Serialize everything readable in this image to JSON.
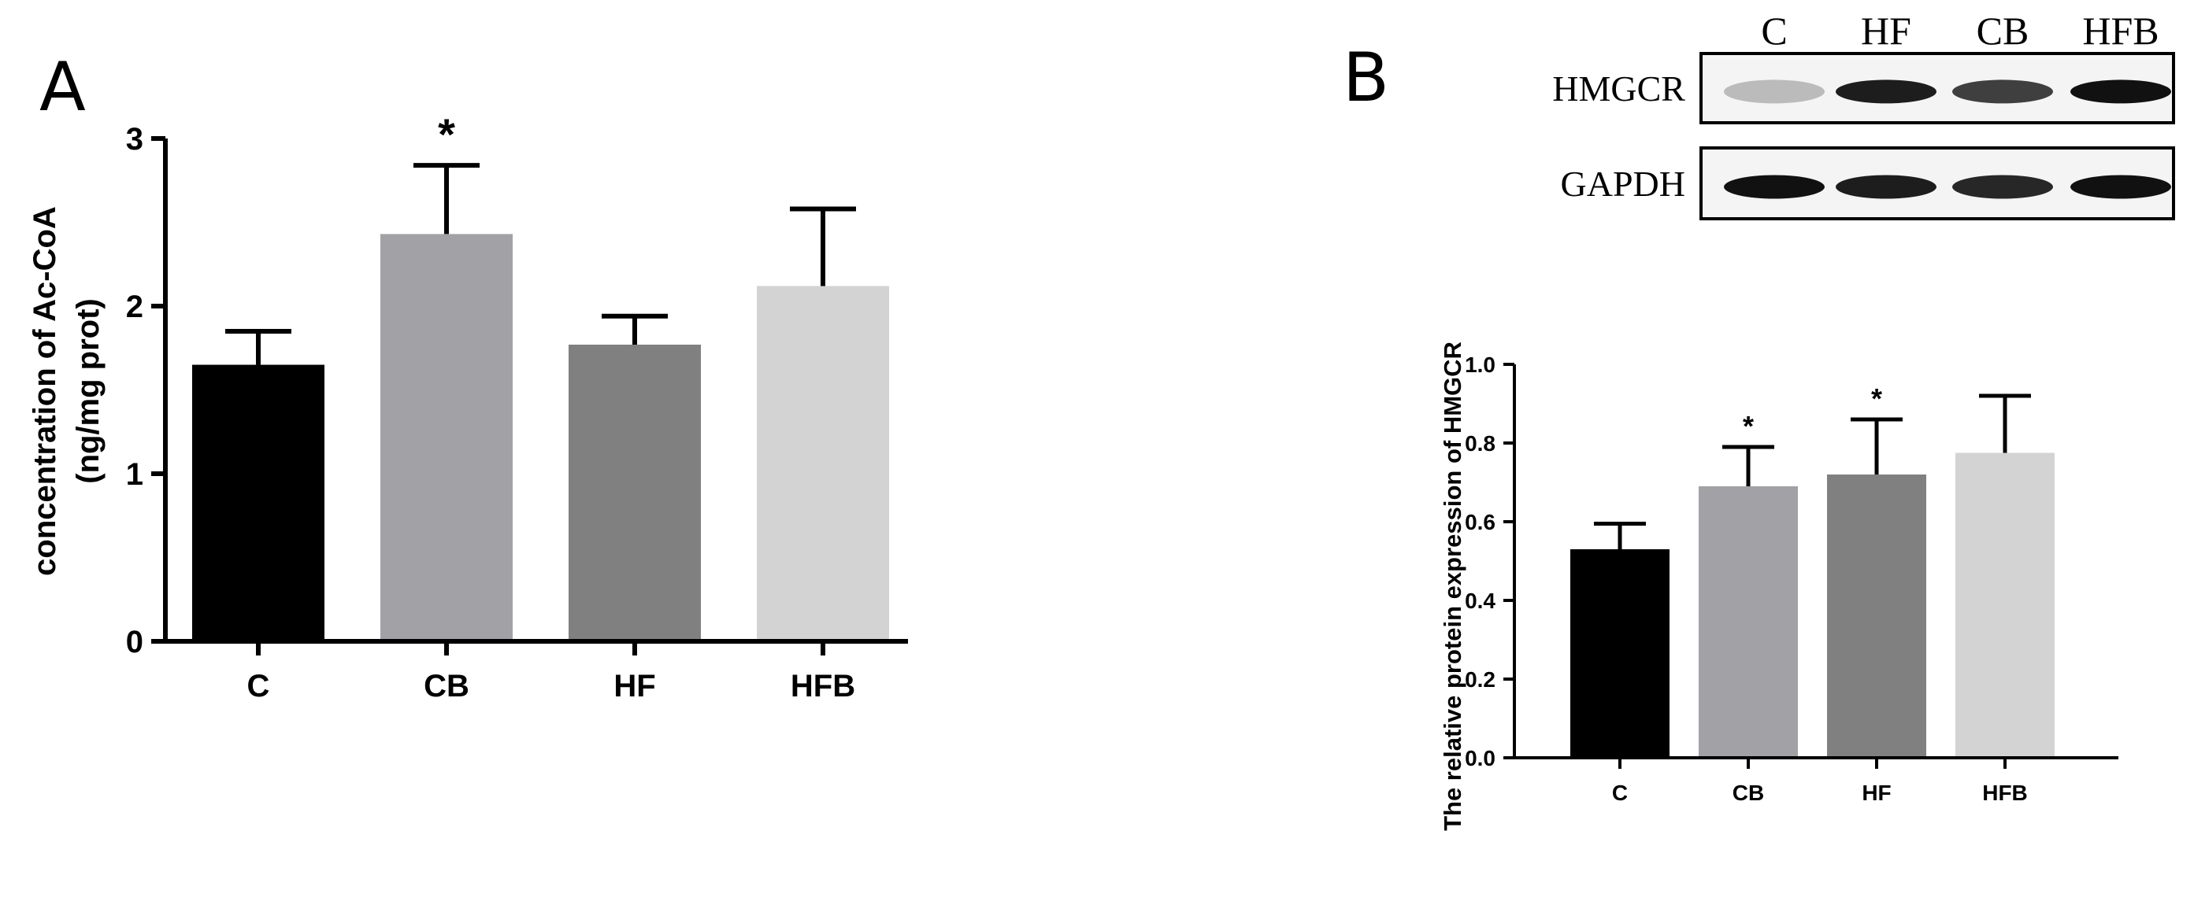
{
  "panels": {
    "a_letter": "A",
    "b_letter": "B"
  },
  "chart_data": [
    {
      "panel": "A",
      "type": "bar",
      "categories": [
        "C",
        "CB",
        "HF",
        "HFB"
      ],
      "values": [
        1.65,
        2.43,
        1.77,
        2.12
      ],
      "errors": [
        0.2,
        0.41,
        0.17,
        0.46
      ],
      "significance": [
        "",
        "*",
        "",
        ""
      ],
      "colors": [
        "#000000",
        "#a1a1a6",
        "#808080",
        "#d3d3d3"
      ],
      "ylabel_line1": "concentration of Ac-CoA",
      "ylabel_line2": "(ng/mg prot)",
      "ylim": [
        0,
        3
      ],
      "yticks": [
        "0",
        "1",
        "2",
        "3"
      ],
      "grid": false
    },
    {
      "panel": "B",
      "type": "bar",
      "categories": [
        "C",
        "CB",
        "HF",
        "HFB"
      ],
      "values": [
        0.53,
        0.69,
        0.72,
        0.775
      ],
      "errors": [
        0.065,
        0.1,
        0.14,
        0.145
      ],
      "significance": [
        "",
        "*",
        "*",
        ""
      ],
      "colors": [
        "#000000",
        "#a1a1a6",
        "#808080",
        "#d3d3d3"
      ],
      "ylabel": "The relative protein expression of HMGCR",
      "ylim": [
        0,
        1.0
      ],
      "yticks": [
        "0.0",
        "0.2",
        "0.4",
        "0.6",
        "0.8",
        "1.0"
      ],
      "grid": false
    }
  ],
  "blot": {
    "lanes": [
      "C",
      "HF",
      "CB",
      "HFB"
    ],
    "rows": [
      {
        "label": "HMGCR",
        "intensity": [
          0.25,
          0.95,
          0.8,
          1.0
        ]
      },
      {
        "label": "GAPDH",
        "intensity": [
          1.0,
          0.95,
          0.9,
          1.0
        ]
      }
    ]
  }
}
